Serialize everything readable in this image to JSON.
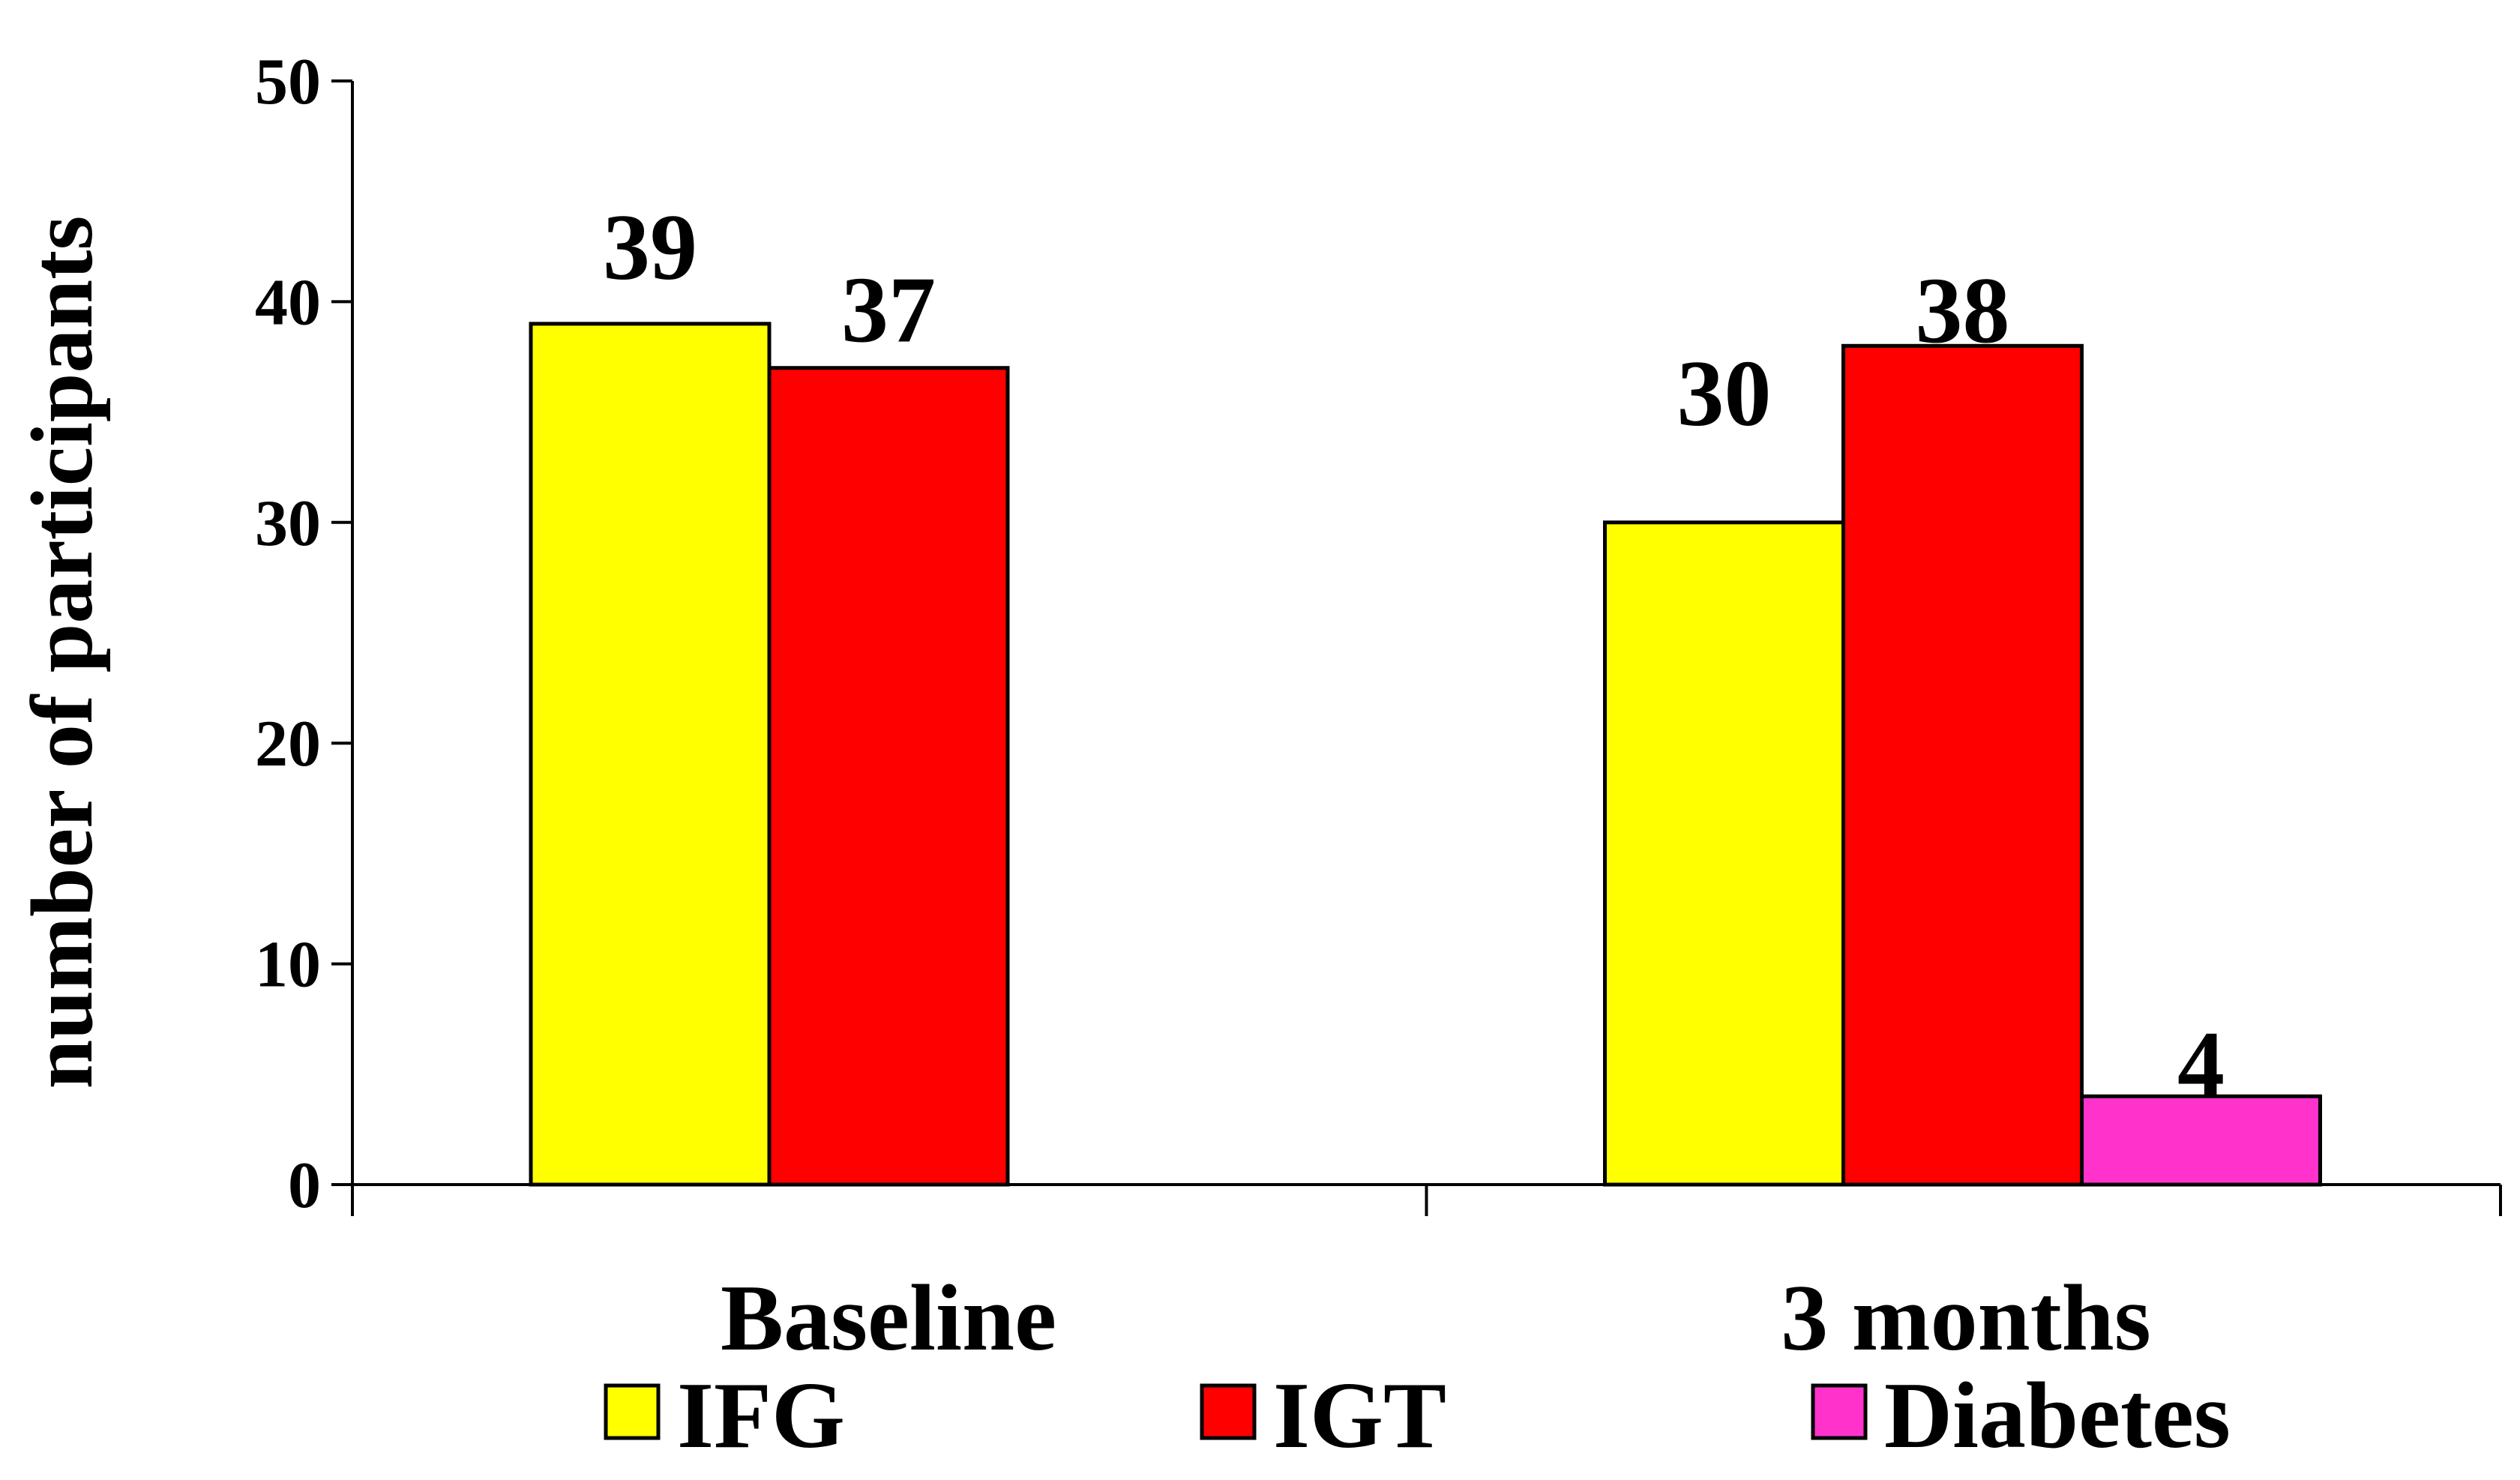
{
  "chart_data": {
    "type": "bar",
    "title": "",
    "xlabel": "",
    "ylabel": "number of participants",
    "ylim": [
      0,
      50
    ],
    "yticks": [
      0,
      10,
      20,
      30,
      40,
      50
    ],
    "grid": false,
    "legend_position": "bottom",
    "categories": [
      "Baseline",
      "3 months"
    ],
    "series": [
      {
        "name": "IFG",
        "color": "#ffff00",
        "values": [
          39,
          30
        ]
      },
      {
        "name": "IGT",
        "color": "#ff0000",
        "values": [
          37,
          38
        ]
      },
      {
        "name": "Diabetes",
        "color": "#ff33cc",
        "values": [
          null,
          4
        ]
      }
    ],
    "data_labels": [
      [
        "39",
        "30"
      ],
      [
        "37",
        "38"
      ],
      [
        "",
        "4"
      ]
    ]
  }
}
